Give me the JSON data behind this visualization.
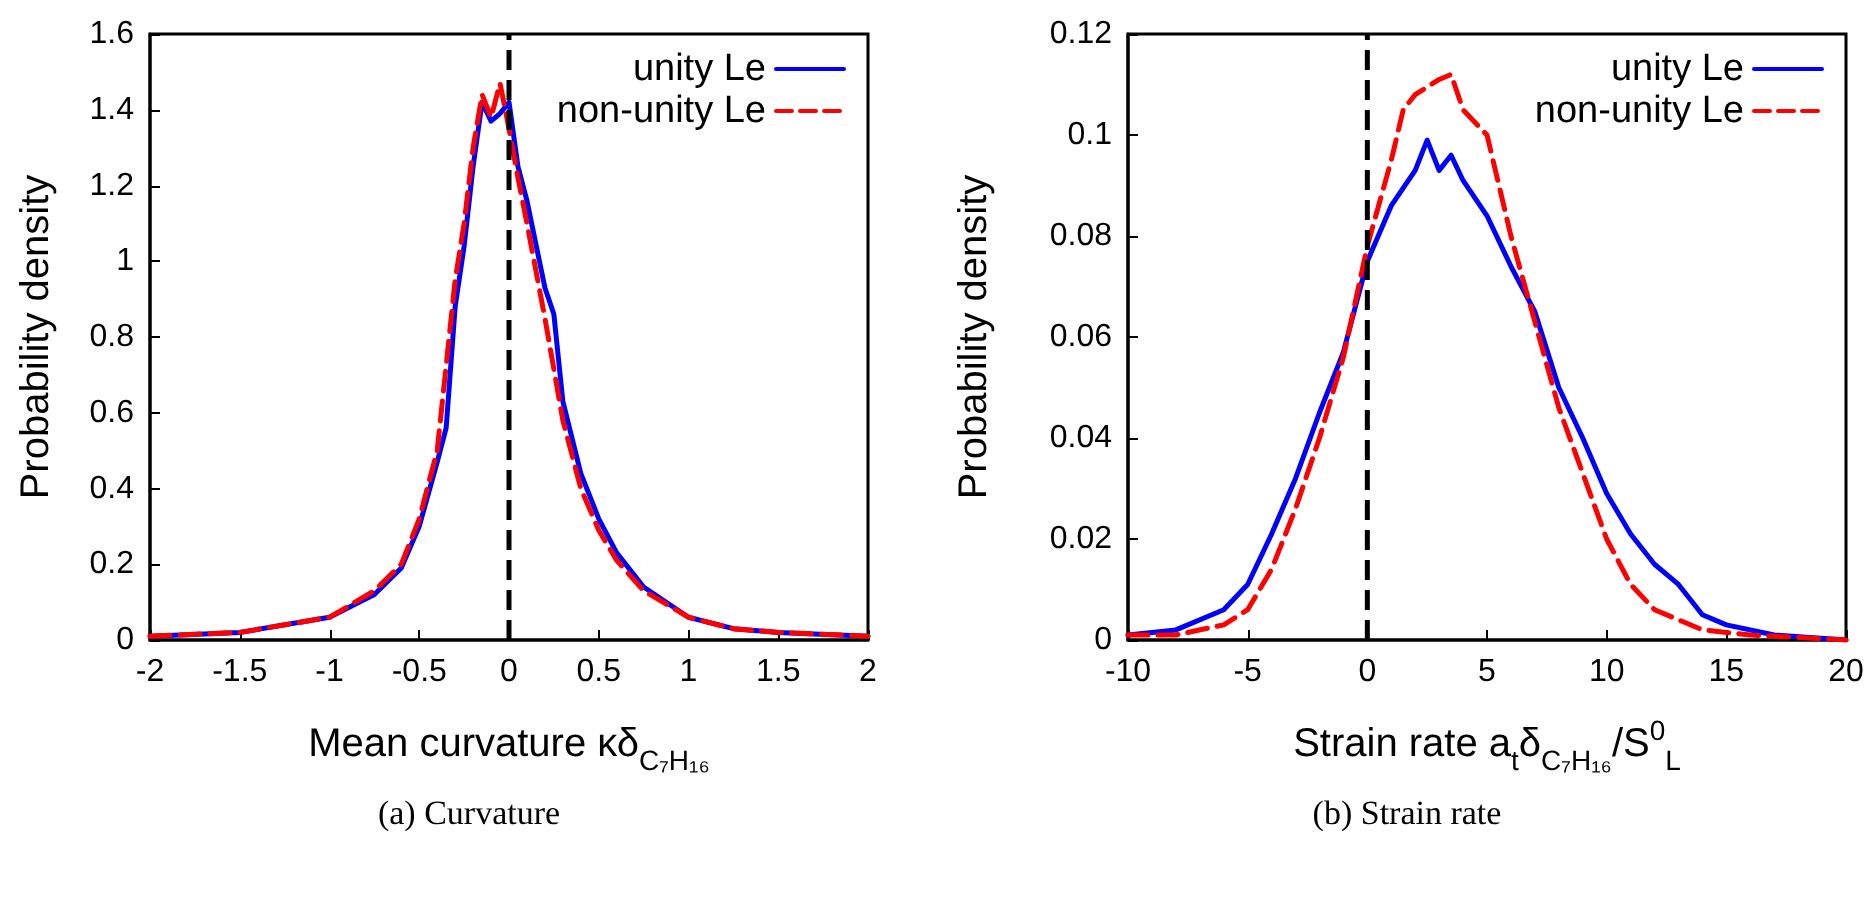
{
  "chart_data": [
    {
      "type": "line",
      "title": "(a) Curvature",
      "xlabel": "Mean curvature κδ$_{C₇H₁₆}$",
      "ylabel": "Probability density",
      "xlim": [
        -2,
        2
      ],
      "xticks": [
        -2,
        -1.5,
        -1,
        -0.5,
        0,
        0.5,
        1,
        1.5,
        2
      ],
      "ylim": [
        0,
        1.6
      ],
      "yticks": [
        0,
        0.2,
        0.4,
        0.6,
        0.8,
        1,
        1.2,
        1.4,
        1.6
      ],
      "grid": false,
      "legend": "top right",
      "marker": "none",
      "ref_lines": [
        {
          "axis": "x",
          "value": 0,
          "color": "#000000",
          "line_style": "dashed"
        }
      ],
      "series": [
        {
          "name": "unity Le",
          "color": "#0000ff",
          "line_style": "solid",
          "x": [
            -2,
            -1.5,
            -1,
            -0.75,
            -0.6,
            -0.5,
            -0.4,
            -0.35,
            -0.3,
            -0.25,
            -0.2,
            -0.15,
            -0.1,
            -0.05,
            0,
            0.05,
            0.1,
            0.2,
            0.25,
            0.3,
            0.4,
            0.5,
            0.6,
            0.75,
            1,
            1.25,
            1.5,
            2
          ],
          "values": [
            0.01,
            0.02,
            0.06,
            0.12,
            0.19,
            0.3,
            0.47,
            0.56,
            0.88,
            1.04,
            1.25,
            1.42,
            1.37,
            1.39,
            1.42,
            1.25,
            1.16,
            0.93,
            0.86,
            0.63,
            0.44,
            0.32,
            0.23,
            0.14,
            0.06,
            0.03,
            0.02,
            0.01
          ]
        },
        {
          "name": "non-unity Le",
          "color": "#ff0000",
          "line_style": "dashed",
          "x": [
            -2,
            -1.5,
            -1,
            -0.75,
            -0.6,
            -0.5,
            -0.4,
            -0.3,
            -0.25,
            -0.2,
            -0.15,
            -0.1,
            -0.05,
            0,
            0.05,
            0.1,
            0.2,
            0.3,
            0.4,
            0.5,
            0.6,
            0.75,
            1,
            1.25,
            1.5,
            2
          ],
          "values": [
            0.01,
            0.02,
            0.06,
            0.13,
            0.2,
            0.32,
            0.5,
            0.95,
            1.1,
            1.3,
            1.44,
            1.38,
            1.47,
            1.35,
            1.22,
            1.1,
            0.85,
            0.58,
            0.4,
            0.29,
            0.21,
            0.13,
            0.06,
            0.03,
            0.02,
            0.01
          ]
        }
      ]
    },
    {
      "type": "line",
      "title": "(b) Strain rate",
      "xlabel": "Strain rate a$_{t}$δ$_{C₇H₁₆}$/S$^{0}$$_{L}$",
      "ylabel": "Probability density",
      "xlim": [
        -10,
        20
      ],
      "xticks": [
        -10,
        -5,
        0,
        5,
        10,
        15,
        20
      ],
      "ylim": [
        0,
        0.12
      ],
      "yticks": [
        0,
        0.02,
        0.04,
        0.06,
        0.08,
        0.1,
        0.12
      ],
      "grid": false,
      "legend": "top right",
      "marker": "none",
      "ref_lines": [
        {
          "axis": "x",
          "value": 0,
          "color": "#000000",
          "line_style": "dashed"
        }
      ],
      "series": [
        {
          "name": "unity Le",
          "color": "#0000ff",
          "line_style": "solid",
          "x": [
            -10,
            -8,
            -6,
            -5,
            -4,
            -3,
            -2,
            -1,
            0,
            1,
            2,
            2.5,
            3,
            3.5,
            4,
            5,
            6,
            7,
            8,
            9,
            10,
            11,
            12,
            13,
            14,
            15,
            17,
            20
          ],
          "values": [
            0.001,
            0.002,
            0.006,
            0.011,
            0.021,
            0.032,
            0.045,
            0.057,
            0.075,
            0.086,
            0.093,
            0.099,
            0.093,
            0.096,
            0.091,
            0.084,
            0.074,
            0.065,
            0.05,
            0.04,
            0.029,
            0.021,
            0.015,
            0.011,
            0.005,
            0.003,
            0.001,
            0
          ]
        },
        {
          "name": "non-unity Le",
          "color": "#ff0000",
          "line_style": "dashed",
          "x": [
            -10,
            -8,
            -6,
            -5,
            -4,
            -3,
            -2,
            -1,
            0,
            1,
            1.5,
            2,
            3,
            3.5,
            4,
            5,
            6,
            7,
            8,
            9,
            10,
            11,
            12,
            13,
            14,
            16,
            20
          ],
          "values": [
            0.001,
            0.001,
            0.003,
            0.006,
            0.014,
            0.026,
            0.04,
            0.056,
            0.078,
            0.095,
            0.105,
            0.108,
            0.111,
            0.112,
            0.105,
            0.1,
            0.08,
            0.063,
            0.046,
            0.033,
            0.02,
            0.011,
            0.006,
            0.004,
            0.002,
            0.001,
            0
          ]
        }
      ]
    }
  ]
}
